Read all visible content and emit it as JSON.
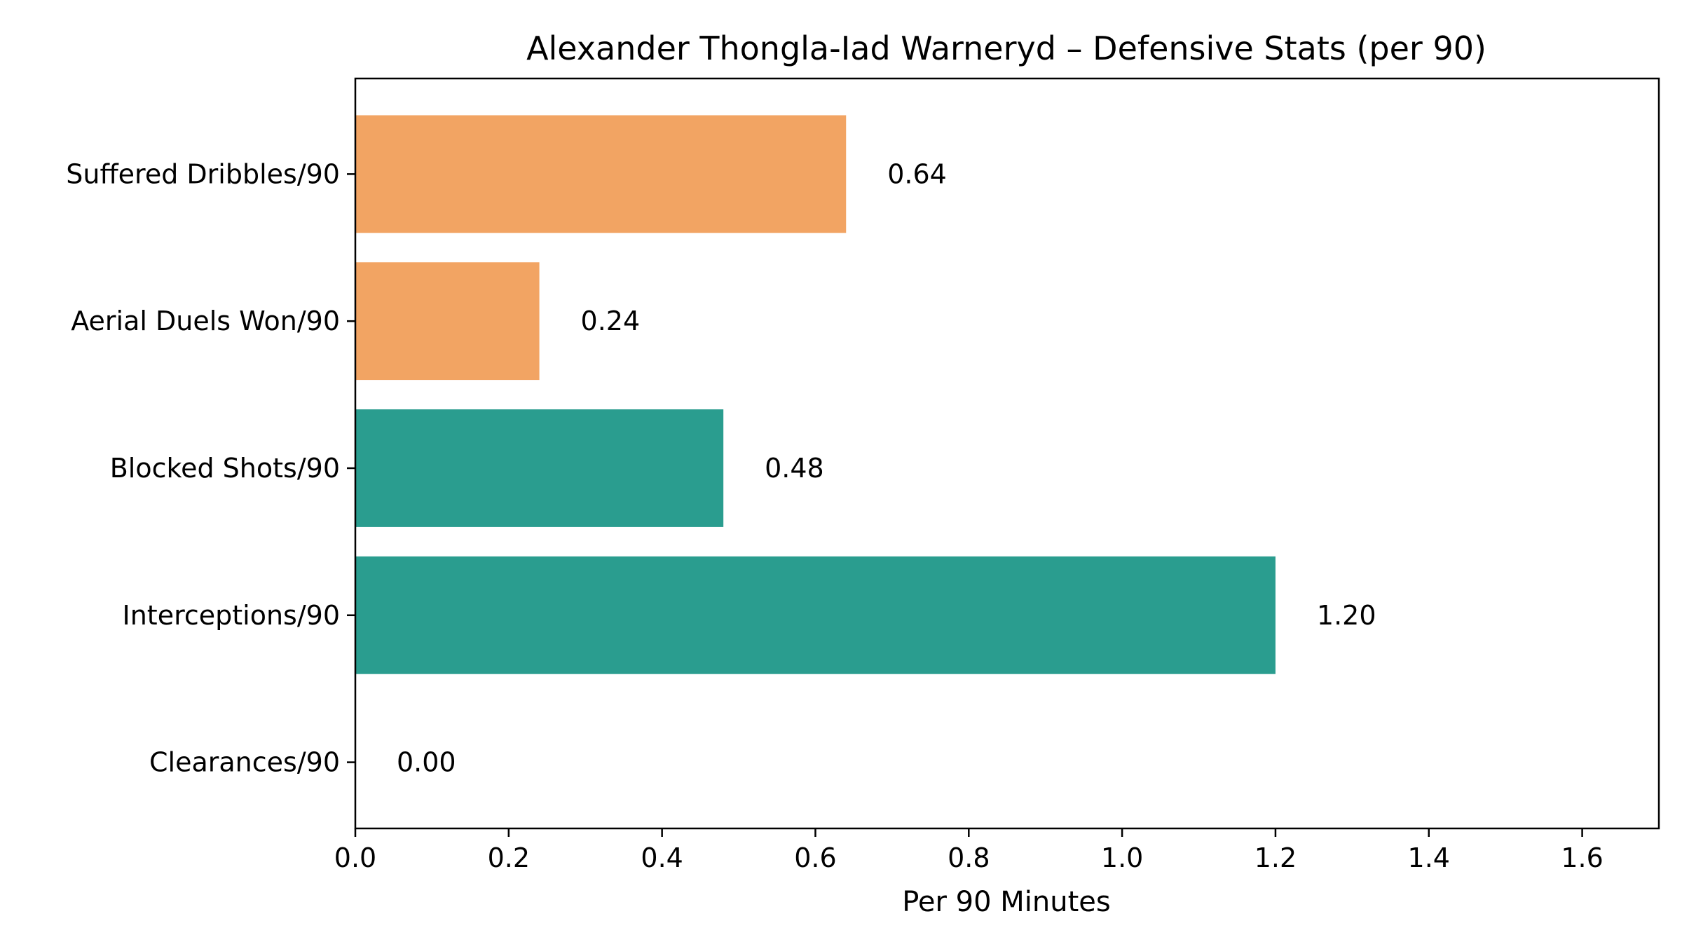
{
  "chart_data": {
    "type": "bar",
    "orientation": "horizontal",
    "title": "Alexander Thongla-Iad Warneryd – Defensive Stats (per 90)",
    "xlabel": "Per 90 Minutes",
    "ylabel": "",
    "xlim": [
      0,
      1.7
    ],
    "x_ticks": [
      "0.0",
      "0.2",
      "0.4",
      "0.6",
      "0.8",
      "1.0",
      "1.2",
      "1.4",
      "1.6"
    ],
    "x_tick_values": [
      0,
      0.2,
      0.4,
      0.6,
      0.8,
      1.0,
      1.2,
      1.4,
      1.6
    ],
    "categories": [
      "Suffered Dribbles/90",
      "Aerial Duels Won/90",
      "Blocked Shots/90",
      "Interceptions/90",
      "Clearances/90"
    ],
    "values": [
      0.64,
      0.24,
      0.48,
      1.2,
      0.0
    ],
    "value_labels": [
      "0.64",
      "0.24",
      "0.48",
      "1.20",
      "0.00"
    ],
    "bar_colors": [
      "#f2a463",
      "#f2a463",
      "#2a9d8f",
      "#2a9d8f",
      "#2a9d8f"
    ],
    "grid": false,
    "legend": "none"
  }
}
